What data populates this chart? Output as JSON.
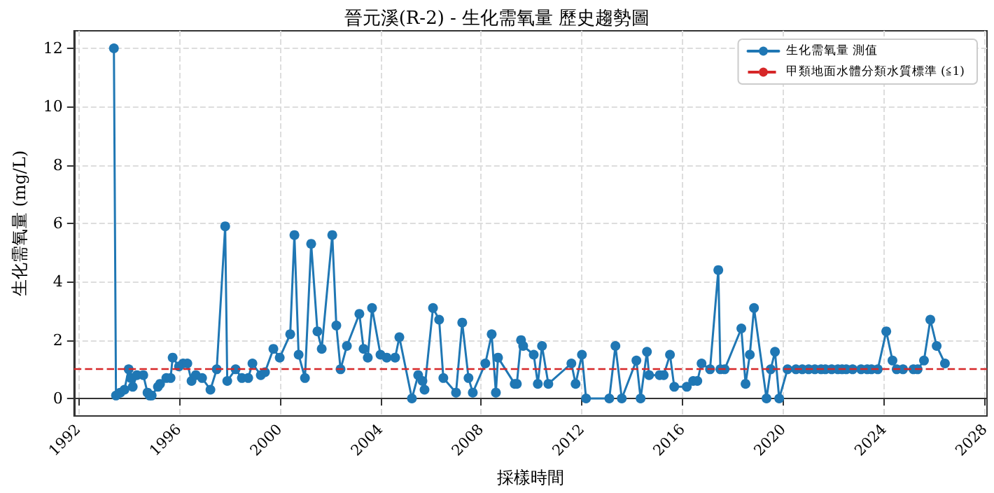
{
  "chart_data": {
    "type": "line",
    "title": "晉元溪(R-2) - 生化需氧量 歷史趨勢圖",
    "xlabel": "採樣時間",
    "ylabel": "生化需氧量 (mg/L)",
    "x": [
      "1993-06",
      "1993-07",
      "1993-09",
      "1993-11",
      "1994-01",
      "1994-02",
      "1994-03",
      "1994-05",
      "1994-08",
      "1994-10",
      "1994-11",
      "1994-12",
      "1995-03",
      "1995-04",
      "1995-07",
      "1995-09",
      "1995-10",
      "1996-01",
      "1996-03",
      "1996-05",
      "1996-07",
      "1996-09",
      "1996-12",
      "1997-04",
      "1997-07",
      "1997-11",
      "1997-12",
      "1998-04",
      "1998-07",
      "1998-10",
      "1998-12",
      "1999-04",
      "1999-06",
      "1999-10",
      "2000-01",
      "2000-06",
      "2000-08",
      "2000-10",
      "2001-01",
      "2001-04",
      "2001-07",
      "2001-09",
      "2002-02",
      "2002-04",
      "2002-06",
      "2002-09",
      "2003-03",
      "2003-05",
      "2003-07",
      "2003-09",
      "2004-01",
      "2004-04",
      "2004-08",
      "2004-10",
      "2005-04",
      "2005-07",
      "2005-09",
      "2005-10",
      "2006-02",
      "2006-05",
      "2006-07",
      "2007-01",
      "2007-04",
      "2007-07",
      "2007-09",
      "2008-03",
      "2008-06",
      "2008-08",
      "2008-09",
      "2009-05",
      "2009-06",
      "2009-08",
      "2009-09",
      "2010-02",
      "2010-04",
      "2010-06",
      "2010-09",
      "2011-08",
      "2011-10",
      "2012-01",
      "2012-03",
      "2013-02",
      "2013-05",
      "2013-08",
      "2014-03",
      "2014-05",
      "2014-08",
      "2014-09",
      "2015-02",
      "2015-04",
      "2015-07",
      "2015-09",
      "2016-03",
      "2016-06",
      "2016-08",
      "2016-10",
      "2017-02",
      "2017-06",
      "2017-07",
      "2017-09",
      "2018-05",
      "2018-07",
      "2018-09",
      "2018-11",
      "2019-05",
      "2019-07",
      "2019-09",
      "2019-11",
      "2020-03",
      "2020-07",
      "2020-10",
      "2021-01",
      "2021-04",
      "2021-07",
      "2021-09",
      "2021-12",
      "2022-03",
      "2022-05",
      "2022-07",
      "2022-10",
      "2023-02",
      "2023-05",
      "2023-07",
      "2023-10",
      "2024-02",
      "2024-05",
      "2024-07",
      "2024-10",
      "2025-03",
      "2025-05",
      "2025-08",
      "2025-11",
      "2026-02",
      "2026-06"
    ],
    "series": [
      {
        "name": "生化需氧量 測值",
        "color": "#1f77b4",
        "values": [
          12.0,
          0.1,
          0.2,
          0.3,
          1.0,
          0.7,
          0.4,
          0.8,
          0.8,
          0.2,
          0.1,
          0.1,
          0.4,
          0.5,
          0.7,
          0.7,
          1.4,
          1.1,
          1.2,
          1.2,
          0.6,
          0.8,
          0.7,
          0.3,
          1.0,
          5.9,
          0.6,
          1.0,
          0.7,
          0.7,
          1.2,
          0.8,
          0.9,
          1.7,
          1.4,
          2.2,
          5.6,
          1.5,
          0.7,
          5.3,
          2.3,
          1.7,
          5.6,
          2.5,
          1.0,
          1.8,
          2.9,
          1.7,
          1.4,
          3.1,
          1.5,
          1.4,
          1.4,
          2.1,
          0.0,
          0.8,
          0.6,
          0.3,
          3.1,
          2.7,
          0.7,
          0.2,
          2.6,
          0.7,
          0.2,
          1.2,
          2.2,
          0.2,
          1.4,
          0.5,
          0.5,
          2.0,
          1.8,
          1.5,
          0.5,
          1.8,
          0.5,
          1.2,
          0.5,
          1.5,
          0.0,
          0.0,
          1.8,
          0.0,
          1.3,
          0.0,
          1.6,
          0.8,
          0.8,
          0.8,
          1.5,
          0.4,
          0.4,
          0.6,
          0.6,
          1.2,
          1.0,
          4.4,
          1.0,
          1.0,
          2.4,
          0.5,
          1.5,
          3.1,
          0.0,
          1.0,
          1.6,
          0.0,
          1.0,
          1.0,
          1.0,
          1.0,
          1.0,
          1.0,
          1.0,
          1.0,
          1.0,
          1.0,
          1.0,
          1.0,
          1.0,
          1.0,
          1.0,
          1.0,
          2.3,
          1.3,
          1.0,
          1.0,
          1.0,
          1.0,
          1.3,
          2.7,
          1.8,
          1.2
        ]
      }
    ],
    "ref_lines": [
      {
        "axis": "y",
        "value": 1,
        "label": "甲類地面水體分類水質標準 (≦1)",
        "color": "#d62728",
        "line_style": "dashed"
      }
    ],
    "xlim": [
      "1991-11",
      "2028-02"
    ],
    "xticks": [
      {
        "value": "1992",
        "label": "1992"
      },
      {
        "value": "1996",
        "label": "1996"
      },
      {
        "value": "2000",
        "label": "2000"
      },
      {
        "value": "2004",
        "label": "2004"
      },
      {
        "value": "2008",
        "label": "2008"
      },
      {
        "value": "2012",
        "label": "2012"
      },
      {
        "value": "2016",
        "label": "2016"
      },
      {
        "value": "2020",
        "label": "2020"
      },
      {
        "value": "2024",
        "label": "2024"
      },
      {
        "value": "2028",
        "label": "2028"
      }
    ],
    "ylim": [
      -0.6,
      12.6
    ],
    "yticks": [
      0,
      2,
      4,
      6,
      8,
      10,
      12
    ],
    "grid": true,
    "legend": "top right",
    "marker": "circle",
    "line_style": "solid"
  }
}
